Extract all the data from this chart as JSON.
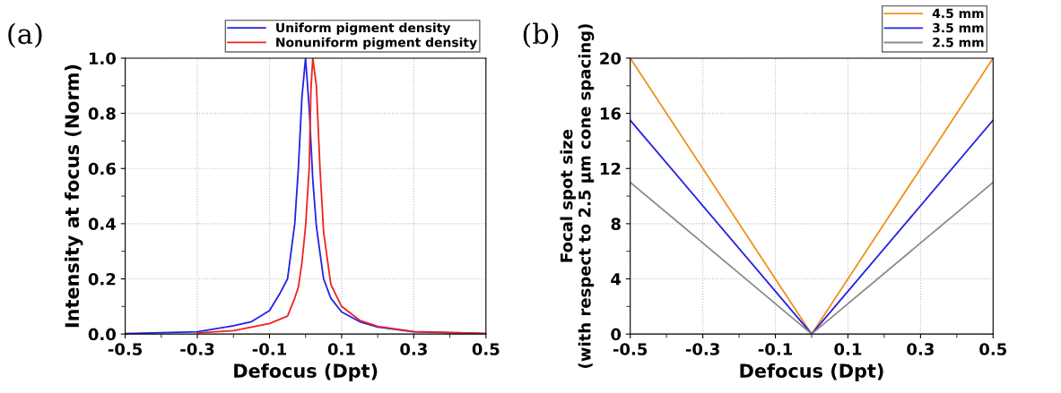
{
  "chart_data": [
    {
      "type": "line",
      "xlabel": "Defocus (Dpt)",
      "ylabel": "Intensity at focus (Norm)",
      "annotations": [
        "(a)"
      ],
      "xlim": [
        -0.5,
        0.5
      ],
      "ylim": [
        0,
        1.0
      ],
      "xticks": [
        -0.5,
        {
          "value": -0.4,
          "label": null
        },
        -0.3,
        {
          "value": -0.2,
          "label": null
        },
        -0.1,
        {
          "value": 0,
          "label": null
        },
        0.1,
        {
          "value": 0.2,
          "label": null
        },
        0.3,
        {
          "value": 0.4,
          "label": null
        },
        0.5
      ],
      "yticks": [
        {
          "value": 0,
          "label": "0.0"
        },
        {
          "value": 0.1,
          "label": null
        },
        0.2,
        {
          "value": 0.3,
          "label": null
        },
        0.4,
        {
          "value": 0.5,
          "label": null
        },
        0.6,
        {
          "value": 0.7,
          "label": null
        },
        0.8,
        {
          "value": 0.9,
          "label": null
        },
        {
          "value": 1,
          "label": "1.0"
        }
      ],
      "grid": true,
      "legend": "top right",
      "line_style": "solid",
      "marker": "none",
      "series": [
        {
          "name": "Uniform pigment density",
          "color": "#2222e6",
          "x": [
            -0.5,
            -0.3,
            -0.2,
            -0.15,
            -0.1,
            -0.07,
            -0.05,
            -0.03,
            -0.02,
            -0.01,
            0,
            0.01,
            0.02,
            0.03,
            0.05,
            0.07,
            0.1,
            0.15,
            0.2,
            0.3,
            0.5
          ],
          "values": [
            0.002,
            0.008,
            0.03,
            0.045,
            0.085,
            0.15,
            0.2,
            0.4,
            0.6,
            0.86,
            1.0,
            0.82,
            0.56,
            0.39,
            0.2,
            0.13,
            0.08,
            0.045,
            0.025,
            0.008,
            0.002
          ]
        },
        {
          "name": "Nonuniform pigment density",
          "color": "#ee2222",
          "x": [
            -0.3,
            -0.2,
            -0.1,
            -0.05,
            -0.03,
            -0.02,
            -0.01,
            0,
            0.01,
            0.015,
            0.02,
            0.03,
            0.04,
            0.05,
            0.07,
            0.1,
            0.15,
            0.2,
            0.3,
            0.5
          ],
          "values": [
            0.004,
            0.012,
            0.038,
            0.065,
            0.13,
            0.17,
            0.26,
            0.39,
            0.6,
            0.89,
            1.0,
            0.9,
            0.6,
            0.37,
            0.18,
            0.1,
            0.05,
            0.028,
            0.009,
            0.002
          ]
        }
      ]
    },
    {
      "type": "line",
      "xlabel": "Defocus (Dpt)",
      "ylabel": "Focal spot size\n(with respect to 2.5 μm cone spacing)",
      "annotations": [
        "(b)"
      ],
      "xlim": [
        -0.5,
        0.5
      ],
      "ylim": [
        0,
        20
      ],
      "xticks": [
        -0.5,
        {
          "value": -0.4,
          "label": null
        },
        -0.3,
        {
          "value": -0.2,
          "label": null
        },
        -0.1,
        {
          "value": 0,
          "label": null
        },
        0.1,
        {
          "value": 0.2,
          "label": null
        },
        0.3,
        {
          "value": 0.4,
          "label": null
        },
        0.5
      ],
      "yticks": [
        0,
        {
          "value": 2,
          "label": null
        },
        4,
        {
          "value": 6,
          "label": null
        },
        8,
        {
          "value": 10,
          "label": null
        },
        12,
        {
          "value": 14,
          "label": null
        },
        16,
        {
          "value": 18,
          "label": null
        },
        20
      ],
      "grid": true,
      "legend": "top right",
      "line_style": "solid",
      "marker": "none",
      "series": [
        {
          "name": "4.5 mm",
          "color": "#f0901c",
          "x": [
            -0.5,
            0,
            0.5
          ],
          "values": [
            20,
            0,
            20
          ]
        },
        {
          "name": "3.5 mm",
          "color": "#2222e6",
          "x": [
            -0.5,
            0,
            0.5
          ],
          "values": [
            15.5,
            0,
            15.5
          ]
        },
        {
          "name": "2.5 mm",
          "color": "#8c8c8c",
          "x": [
            -0.5,
            0,
            0.5
          ],
          "values": [
            11,
            0,
            11
          ]
        }
      ]
    }
  ]
}
